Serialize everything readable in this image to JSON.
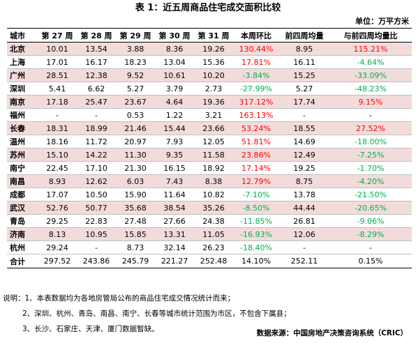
{
  "title": "表 1：近五周商品住宅成交面积比较",
  "unit_label": "单位：万平方米",
  "headers": [
    "城市",
    "第 27 周",
    "第 28 周",
    "第 29 周",
    "第 30 周",
    "第 31 周",
    "本周环比",
    "前四周均量",
    "与前四周均量比"
  ],
  "rows": [
    {
      "city": "北京",
      "w27": "10.01",
      "w28": "13.54",
      "w29": "3.88",
      "w30": "8.36",
      "w31": "19.26",
      "wow": "130.44%",
      "avg4": "8.95",
      "vs_avg": "115.21%",
      "wow_dir": "up",
      "vs_dir": "up",
      "pink": true,
      "group_start": false
    },
    {
      "city": "上海",
      "w27": "17.01",
      "w28": "16.17",
      "w29": "18.23",
      "w30": "13.04",
      "w31": "15.36",
      "wow": "17.81%",
      "avg4": "16.11",
      "vs_avg": "-4.64%",
      "wow_dir": "up",
      "vs_dir": "down",
      "pink": false,
      "group_start": false
    },
    {
      "city": "广州",
      "w27": "28.51",
      "w28": "12.38",
      "w29": "9.52",
      "w30": "10.61",
      "w31": "10.20",
      "wow": "-3.84%",
      "avg4": "15.25",
      "vs_avg": "-33.09%",
      "wow_dir": "down",
      "vs_dir": "down",
      "pink": true,
      "group_start": false
    },
    {
      "city": "深圳",
      "w27": "5.41",
      "w28": "6.62",
      "w29": "5.27",
      "w30": "3.79",
      "w31": "2.73",
      "wow": "-27.99%",
      "avg4": "5.27",
      "vs_avg": "-48.23%",
      "wow_dir": "down",
      "vs_dir": "down",
      "pink": false,
      "group_start": false
    },
    {
      "city": "南京",
      "w27": "17.18",
      "w28": "25.47",
      "w29": "23.67",
      "w30": "4.64",
      "w31": "19.36",
      "wow": "317.12%",
      "avg4": "17.74",
      "vs_avg": "9.15%",
      "wow_dir": "up",
      "vs_dir": "up",
      "pink": true,
      "group_start": true
    },
    {
      "city": "福州",
      "w27": "-",
      "w28": "-",
      "w29": "0.53",
      "w30": "1.22",
      "w31": "3.21",
      "wow": "163.13%",
      "avg4": "-",
      "vs_avg": "-",
      "wow_dir": "up",
      "vs_dir": "none",
      "pink": false,
      "group_start": false
    },
    {
      "city": "长春",
      "w27": "18.31",
      "w28": "18.99",
      "w29": "21.46",
      "w30": "15.44",
      "w31": "23.66",
      "wow": "53.24%",
      "avg4": "18.55",
      "vs_avg": "27.52%",
      "wow_dir": "up",
      "vs_dir": "up",
      "pink": true,
      "group_start": false
    },
    {
      "city": "温州",
      "w27": "18.16",
      "w28": "11.72",
      "w29": "20.97",
      "w30": "7.93",
      "w31": "12.05",
      "wow": "51.81%",
      "avg4": "14.69",
      "vs_avg": "-18.00%",
      "wow_dir": "up",
      "vs_dir": "down",
      "pink": false,
      "group_start": false
    },
    {
      "city": "苏州",
      "w27": "15.10",
      "w28": "14.22",
      "w29": "11.30",
      "w30": "9.35",
      "w31": "11.58",
      "wow": "23.86%",
      "avg4": "12.49",
      "vs_avg": "-7.25%",
      "wow_dir": "up",
      "vs_dir": "down",
      "pink": true,
      "group_start": false
    },
    {
      "city": "南宁",
      "w27": "22.45",
      "w28": "17.10",
      "w29": "21.30",
      "w30": "16.15",
      "w31": "18.92",
      "wow": "17.14%",
      "avg4": "19.25",
      "vs_avg": "-1.70%",
      "wow_dir": "up",
      "vs_dir": "down",
      "pink": false,
      "group_start": false
    },
    {
      "city": "南昌",
      "w27": "8.93",
      "w28": "12.62",
      "w29": "6.03",
      "w30": "7.43",
      "w31": "8.38",
      "wow": "12.79%",
      "avg4": "8.75",
      "vs_avg": "-4.20%",
      "wow_dir": "up",
      "vs_dir": "down",
      "pink": true,
      "group_start": false
    },
    {
      "city": "成都",
      "w27": "17.07",
      "w28": "10.50",
      "w29": "15.90",
      "w30": "11.64",
      "w31": "10.82",
      "wow": "-7.10%",
      "avg4": "13.78",
      "vs_avg": "-21.50%",
      "wow_dir": "down",
      "vs_dir": "down",
      "pink": false,
      "group_start": false
    },
    {
      "city": "武汉",
      "w27": "52.76",
      "w28": "50.77",
      "w29": "35.68",
      "w30": "38.54",
      "w31": "35.26",
      "wow": "-8.50%",
      "avg4": "44.44",
      "vs_avg": "-20.65%",
      "wow_dir": "down",
      "vs_dir": "down",
      "pink": true,
      "group_start": false
    },
    {
      "city": "青岛",
      "w27": "29.25",
      "w28": "22.83",
      "w29": "27.48",
      "w30": "27.66",
      "w31": "24.38",
      "wow": "-11.85%",
      "avg4": "26.81",
      "vs_avg": "-9.06%",
      "wow_dir": "down",
      "vs_dir": "down",
      "pink": false,
      "group_start": false
    },
    {
      "city": "济南",
      "w27": "8.13",
      "w28": "10.95",
      "w29": "15.85",
      "w30": "13.31",
      "w31": "11.05",
      "wow": "-16.93%",
      "avg4": "12.06",
      "vs_avg": "-8.29%",
      "wow_dir": "down",
      "vs_dir": "down",
      "pink": true,
      "group_start": false
    },
    {
      "city": "杭州",
      "w27": "29.24",
      "w28": "-",
      "w29": "8.73",
      "w30": "32.14",
      "w31": "26.23",
      "wow": "-18.40%",
      "avg4": "-",
      "vs_avg": "-",
      "wow_dir": "down",
      "vs_dir": "none",
      "pink": false,
      "group_start": false
    }
  ],
  "total": {
    "city": "合计",
    "w27": "297.52",
    "w28": "243.86",
    "w29": "245.79",
    "w30": "221.27",
    "w31": "252.48",
    "wow": "14.10%",
    "avg4": "252.11",
    "vs_avg": "0.15%"
  },
  "notes": [
    "说明：1、本表数据均为各地房管局公布的商品住宅成交情况统计而来；",
    "2、深圳、杭州、青岛、南昌、南宁、长春等城市统计范围为市区，不包含下属县；",
    "3、长沙、石家庄、天津、厦门数据暂缺。"
  ],
  "source": "数据来源：中国房地产决策咨询系统（CRIC）",
  "colors": {
    "up": "#ff0000",
    "down": "#00b050",
    "pink_row": "#f2dcdb"
  }
}
